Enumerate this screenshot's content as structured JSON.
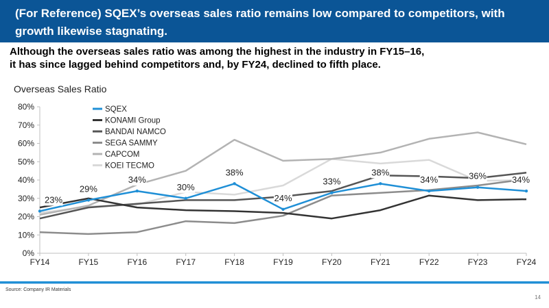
{
  "header": {
    "title": "(For Reference) SQEX’s overseas sales ratio remains low compared to competitors, with\ngrowth likewise stagnating.",
    "subtitle": "Although the overseas sales ratio was among the highest in the industry in FY15–16,\nit has since lagged behind competitors and, by FY24, declined to fifth place."
  },
  "footer": {
    "source": "Source: Company IR Materials",
    "page_number": "14"
  },
  "chart_data": {
    "type": "line",
    "title": "Overseas Sales Ratio",
    "categories": [
      "FY14",
      "FY15",
      "FY16",
      "FY17",
      "FY18",
      "FY19",
      "FY20",
      "FY21",
      "FY22",
      "FY23",
      "FY24"
    ],
    "ylim": [
      0,
      80
    ],
    "yticks": [
      "0%",
      "10%",
      "20%",
      "30%",
      "40%",
      "50%",
      "60%",
      "70%",
      "80%"
    ],
    "legend_position": "top-left",
    "grid": false,
    "series": [
      {
        "name": "SQEX",
        "color": "#1f8fd6",
        "width": 2.5,
        "values": [
          23,
          29,
          34,
          30,
          38,
          24,
          33,
          38,
          34,
          36,
          34
        ],
        "labels": [
          "23%",
          "29%",
          "34%",
          "30%",
          "38%",
          "24%",
          "33%",
          "38%",
          "34%",
          "36%",
          "34%"
        ]
      },
      {
        "name": "KONAMI Group",
        "color": "#333333",
        "width": 2.5,
        "values": [
          25,
          30,
          25,
          23.5,
          23,
          22,
          19,
          23.5,
          31.5,
          29,
          29.5
        ]
      },
      {
        "name": "BANDAI NAMCO",
        "color": "#555555",
        "width": 2.5,
        "values": [
          19,
          25,
          27,
          29,
          29,
          31,
          34,
          42.5,
          42,
          41,
          44
        ]
      },
      {
        "name": "SEGA SAMMY",
        "color": "#8c8c8c",
        "width": 2.5,
        "values": [
          11.5,
          10.5,
          11.5,
          17.5,
          16.5,
          20.5,
          31.5,
          33,
          34.5,
          37,
          40.5
        ]
      },
      {
        "name": "CAPCOM",
        "color": "#b3b3b3",
        "width": 2.5,
        "values": [
          21,
          26,
          37.5,
          45,
          62,
          50.5,
          51.5,
          55,
          62.5,
          66,
          59.5
        ]
      },
      {
        "name": "KOEI TECMO",
        "color": "#d9d9d9",
        "width": 2.5,
        "values": [
          22,
          25.5,
          26.5,
          33.5,
          32,
          37,
          51.5,
          49,
          51,
          39.5,
          40
        ]
      }
    ]
  }
}
